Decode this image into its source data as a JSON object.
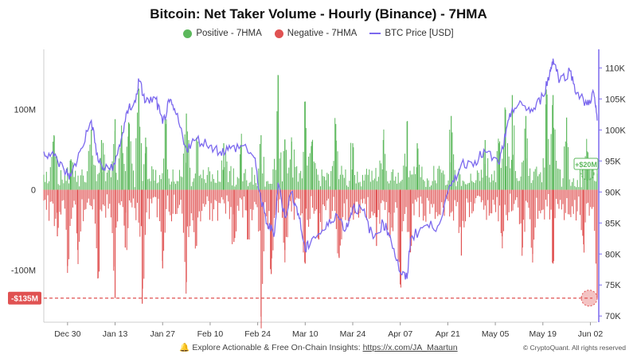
{
  "chart_data": {
    "type": "bar",
    "title": "Bitcoin: Net Taker Volume - Hourly (Binance) - 7HMA",
    "legend": [
      {
        "label": "Positive - 7HMA",
        "color": "#5cb85c",
        "shape": "dot"
      },
      {
        "label": "Negative - 7HMA",
        "color": "#e05252",
        "shape": "dot"
      },
      {
        "label": "BTC Price [USD]",
        "color": "#7b68ee",
        "shape": "line"
      }
    ],
    "legend_position": "top-center",
    "grid": false,
    "x_ticks": [
      "Dec 30",
      "Jan 13",
      "Jan 27",
      "Feb 10",
      "Feb 24",
      "Mar 10",
      "Mar 24",
      "Apr 07",
      "Apr 21",
      "May 05",
      "May 19",
      "Jun 02"
    ],
    "left_axis": {
      "ticks": [
        "100M",
        "0",
        "-100M"
      ],
      "tick_values": [
        100,
        0,
        -100
      ],
      "range": [
        -165,
        175
      ],
      "unit": "M"
    },
    "right_axis": {
      "ticks": [
        "110K",
        "105K",
        "100K",
        "95K",
        "90K",
        "85K",
        "80K",
        "75K",
        "70K"
      ],
      "tick_values": [
        110,
        105,
        100,
        95,
        90,
        85,
        80,
        75,
        70
      ],
      "range": [
        69,
        113
      ],
      "unit": "K USD"
    },
    "date_range": [
      "2024-12-23",
      "2025-06-04"
    ],
    "annotations": [
      {
        "text": "+$20M",
        "value": 20,
        "color": "#5cb85c"
      },
      {
        "text": "-$135M",
        "value": -135,
        "color": "#e05252"
      }
    ],
    "series": [
      {
        "name": "BTC Price [USD]",
        "unit": "K USD",
        "points": [
          [
            "2024-12-23",
            96.5
          ],
          [
            "2024-12-26",
            95.8
          ],
          [
            "2024-12-29",
            93.5
          ],
          [
            "2024-12-31",
            92.5
          ],
          [
            "2025-01-03",
            97.0
          ],
          [
            "2025-01-06",
            101.5
          ],
          [
            "2025-01-08",
            95.0
          ],
          [
            "2025-01-10",
            93.5
          ],
          [
            "2025-01-13",
            94.5
          ],
          [
            "2025-01-15",
            99.0
          ],
          [
            "2025-01-17",
            103.5
          ],
          [
            "2025-01-19",
            104.5
          ],
          [
            "2025-01-20",
            108.0
          ],
          [
            "2025-01-22",
            104.5
          ],
          [
            "2025-01-25",
            105.0
          ],
          [
            "2025-01-27",
            101.0
          ],
          [
            "2025-01-29",
            104.5
          ],
          [
            "2025-01-31",
            102.5
          ],
          [
            "2025-02-03",
            97.0
          ],
          [
            "2025-02-06",
            98.5
          ],
          [
            "2025-02-10",
            97.5
          ],
          [
            "2025-02-13",
            96.5
          ],
          [
            "2025-02-16",
            97.0
          ],
          [
            "2025-02-20",
            97.5
          ],
          [
            "2025-02-23",
            95.5
          ],
          [
            "2025-02-25",
            88.5
          ],
          [
            "2025-02-27",
            84.5
          ],
          [
            "2025-03-01",
            83.5
          ],
          [
            "2025-03-02",
            91.5
          ],
          [
            "2025-03-04",
            86.0
          ],
          [
            "2025-03-06",
            90.0
          ],
          [
            "2025-03-08",
            86.5
          ],
          [
            "2025-03-10",
            80.5
          ],
          [
            "2025-03-12",
            82.5
          ],
          [
            "2025-03-16",
            84.0
          ],
          [
            "2025-03-19",
            86.5
          ],
          [
            "2025-03-22",
            84.0
          ],
          [
            "2025-03-24",
            87.5
          ],
          [
            "2025-03-27",
            87.0
          ],
          [
            "2025-03-30",
            82.5
          ],
          [
            "2025-04-02",
            85.0
          ],
          [
            "2025-04-04",
            83.0
          ],
          [
            "2025-04-07",
            77.0
          ],
          [
            "2025-04-09",
            76.0
          ],
          [
            "2025-04-10",
            82.5
          ],
          [
            "2025-04-14",
            84.5
          ],
          [
            "2025-04-18",
            84.5
          ],
          [
            "2025-04-22",
            91.0
          ],
          [
            "2025-04-25",
            94.5
          ],
          [
            "2025-04-29",
            95.0
          ],
          [
            "2025-05-02",
            96.5
          ],
          [
            "2025-05-06",
            94.5
          ],
          [
            "2025-05-08",
            99.0
          ],
          [
            "2025-05-10",
            103.5
          ],
          [
            "2025-05-13",
            104.0
          ],
          [
            "2025-05-16",
            103.0
          ],
          [
            "2025-05-19",
            105.5
          ],
          [
            "2025-05-21",
            109.0
          ],
          [
            "2025-05-22",
            111.5
          ],
          [
            "2025-05-24",
            108.0
          ],
          [
            "2025-05-27",
            109.5
          ],
          [
            "2025-05-29",
            106.0
          ],
          [
            "2025-06-01",
            104.0
          ],
          [
            "2025-06-03",
            106.0
          ],
          [
            "2025-06-04",
            101.5
          ]
        ]
      },
      {
        "name": "Positive - 7HMA",
        "unit": "M USD",
        "points": [
          [
            "2024-12-26",
            68
          ],
          [
            "2024-12-31",
            38
          ],
          [
            "2025-01-06",
            75
          ],
          [
            "2025-01-09",
            62
          ],
          [
            "2025-01-13",
            88
          ],
          [
            "2025-01-15",
            72
          ],
          [
            "2025-01-17",
            84
          ],
          [
            "2025-01-20",
            126
          ],
          [
            "2025-01-22",
            65
          ],
          [
            "2025-01-28",
            82
          ],
          [
            "2025-02-03",
            95
          ],
          [
            "2025-02-06",
            65
          ],
          [
            "2025-02-14",
            58
          ],
          [
            "2025-02-19",
            56
          ],
          [
            "2025-02-25",
            68
          ],
          [
            "2025-03-02",
            143
          ],
          [
            "2025-03-04",
            62
          ],
          [
            "2025-03-06",
            60
          ],
          [
            "2025-03-10",
            110
          ],
          [
            "2025-03-12",
            60
          ],
          [
            "2025-03-19",
            82
          ],
          [
            "2025-03-24",
            58
          ],
          [
            "2025-04-02",
            62
          ],
          [
            "2025-04-09",
            85
          ],
          [
            "2025-04-12",
            58
          ],
          [
            "2025-04-22",
            92
          ],
          [
            "2025-05-02",
            62
          ],
          [
            "2025-05-06",
            58
          ],
          [
            "2025-05-08",
            100
          ],
          [
            "2025-05-10",
            118
          ],
          [
            "2025-05-14",
            92
          ],
          [
            "2025-05-20",
            125
          ],
          [
            "2025-05-22",
            118
          ],
          [
            "2025-05-26",
            90
          ],
          [
            "2025-06-01",
            48
          ],
          [
            "2025-06-04",
            20
          ]
        ]
      },
      {
        "name": "Negative - 7HMA",
        "unit": "M USD",
        "points": [
          [
            "2024-12-27",
            -58
          ],
          [
            "2024-12-30",
            -95
          ],
          [
            "2025-01-02",
            -75
          ],
          [
            "2025-01-08",
            -110
          ],
          [
            "2025-01-13",
            -135
          ],
          [
            "2025-01-16",
            -72
          ],
          [
            "2025-01-21",
            -142
          ],
          [
            "2025-01-27",
            -98
          ],
          [
            "2025-02-03",
            -115
          ],
          [
            "2025-02-06",
            -70
          ],
          [
            "2025-02-17",
            -65
          ],
          [
            "2025-02-21",
            -62
          ],
          [
            "2025-02-25",
            -158
          ],
          [
            "2025-02-28",
            -105
          ],
          [
            "2025-03-04",
            -75
          ],
          [
            "2025-03-10",
            -92
          ],
          [
            "2025-03-14",
            -62
          ],
          [
            "2025-03-20",
            -85
          ],
          [
            "2025-03-31",
            -70
          ],
          [
            "2025-04-04",
            -60
          ],
          [
            "2025-04-07",
            -118
          ],
          [
            "2025-04-10",
            -78
          ],
          [
            "2025-04-25",
            -82
          ],
          [
            "2025-05-07",
            -58
          ],
          [
            "2025-05-13",
            -72
          ],
          [
            "2025-05-16",
            -80
          ],
          [
            "2025-05-22",
            -92
          ],
          [
            "2025-05-31",
            -68
          ],
          [
            "2025-06-04",
            -135
          ]
        ]
      }
    ]
  },
  "footer": {
    "text": "Explore Actionable & Free On-Chain Insights: ",
    "link": "https://x.com/JA_Maartun",
    "copyright": "© CryptoQuant. All rights reserved"
  }
}
